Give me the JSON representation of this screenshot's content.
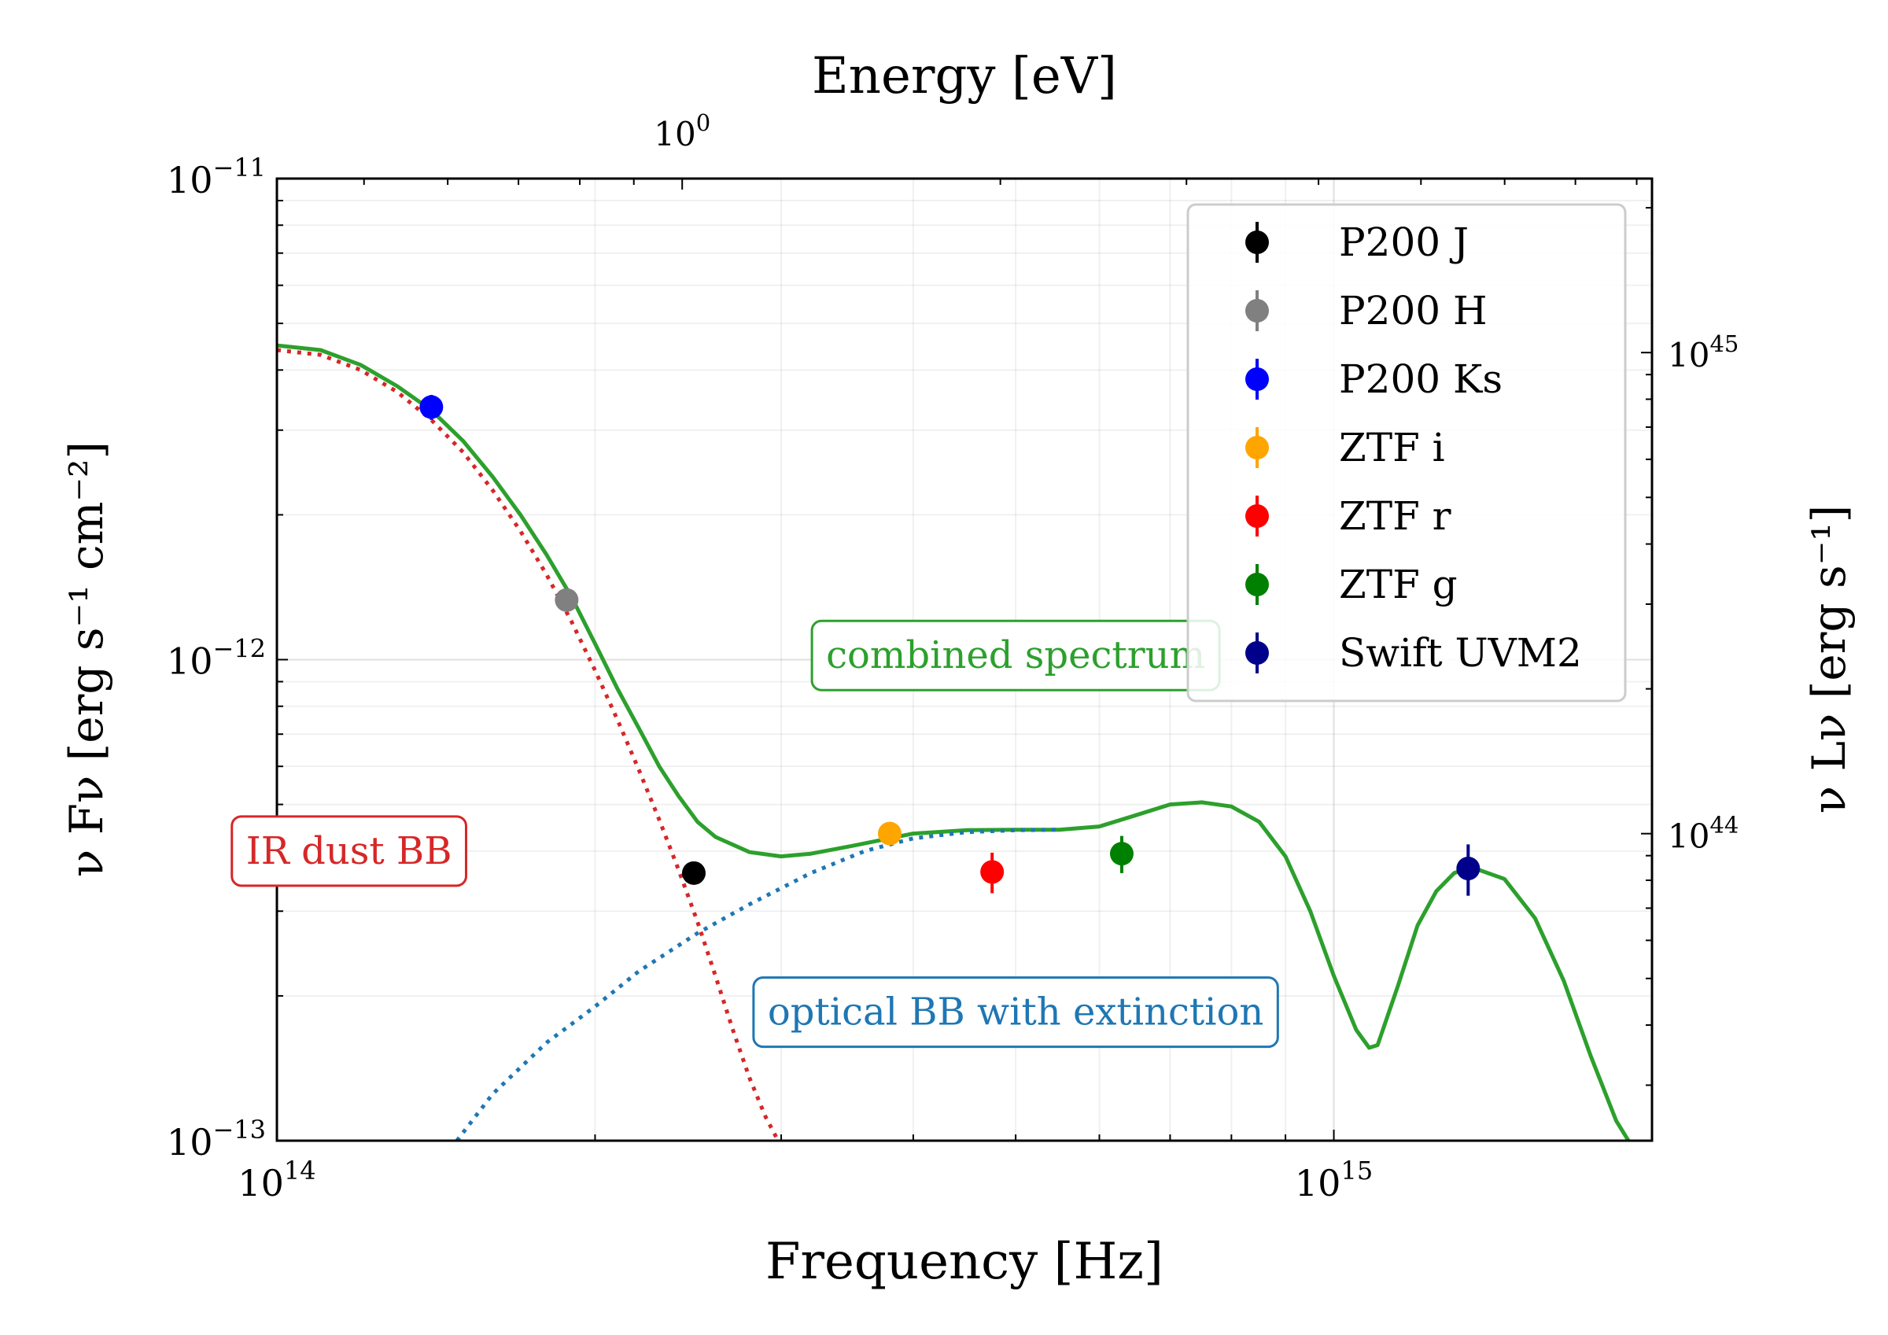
{
  "chart_data": {
    "type": "scatter",
    "title": "",
    "xlabel": "Frequency [Hz]",
    "ylabel": "ν Fν [erg s⁻¹ cm⁻²]",
    "top_xlabel": "Energy [eV]",
    "right_ylabel": "ν Lν [erg s⁻¹]",
    "xscale": "log",
    "yscale": "log",
    "xlim": [
      100000000000000.0,
      2000000000000000.0
    ],
    "ylim": [
      1e-13,
      1e-11
    ],
    "grid": true,
    "legend_position": "top-right",
    "x_ticks": [
      {
        "value": 100000000000000.0,
        "label_base": "10",
        "label_exp": "14"
      },
      {
        "value": 1000000000000000.0,
        "label_base": "10",
        "label_exp": "15"
      }
    ],
    "y_ticks": [
      {
        "value": 1e-13,
        "label_base": "10",
        "label_exp": "−13"
      },
      {
        "value": 1e-12,
        "label_base": "10",
        "label_exp": "−12"
      },
      {
        "value": 1e-11,
        "label_base": "10",
        "label_exp": "−11"
      }
    ],
    "top_ticks": [
      {
        "value_ev": 1,
        "label_base": "10",
        "label_exp": "0"
      }
    ],
    "right_ticks": [
      {
        "value": 1e+44,
        "label_base": "10",
        "label_exp": "44"
      },
      {
        "value": 1e+45,
        "label_base": "10",
        "label_exp": "45"
      }
    ],
    "right_ylim": [
      2.3e+43,
      2.3e+45
    ],
    "series": [
      {
        "name": "P200 J",
        "color": "#000000",
        "points": [
          {
            "x": 248000000000000.0,
            "y": 3.6e-13,
            "yerr": 1.5e-14
          }
        ]
      },
      {
        "name": "P200 H",
        "color": "#808080",
        "points": [
          {
            "x": 188000000000000.0,
            "y": 1.33e-12,
            "yerr": 5e-14
          }
        ]
      },
      {
        "name": "P200 Ks",
        "color": "#0000ff",
        "points": [
          {
            "x": 140000000000000.0,
            "y": 3.35e-12,
            "yerr": 2e-13
          }
        ]
      },
      {
        "name": "ZTF i",
        "color": "#ffa500",
        "points": [
          {
            "x": 380000000000000.0,
            "y": 4.35e-13,
            "yerr": 1e-14
          }
        ]
      },
      {
        "name": "ZTF r",
        "color": "#ff0000",
        "points": [
          {
            "x": 475000000000000.0,
            "y": 3.62e-13,
            "yerr": 3.5e-14
          }
        ]
      },
      {
        "name": "ZTF g",
        "color": "#008000",
        "points": [
          {
            "x": 630000000000000.0,
            "y": 3.95e-13,
            "yerr": 3.5e-14
          }
        ]
      },
      {
        "name": "Swift UVM2",
        "color": "#00008b",
        "points": [
          {
            "x": 1340000000000000.0,
            "y": 3.68e-13,
            "yerr": 4.5e-14
          }
        ]
      }
    ],
    "curves": [
      {
        "name": "combined spectrum",
        "color": "#2ca02c",
        "style": "solid",
        "points": [
          [
            100000000000000.0,
            4.5e-12
          ],
          [
            110000000000000.0,
            4.4e-12
          ],
          [
            120000000000000.0,
            4.1e-12
          ],
          [
            130000000000000.0,
            3.7e-12
          ],
          [
            140000000000000.0,
            3.3e-12
          ],
          [
            150000000000000.0,
            2.85e-12
          ],
          [
            160000000000000.0,
            2.4e-12
          ],
          [
            170000000000000.0,
            2e-12
          ],
          [
            180000000000000.0,
            1.65e-12
          ],
          [
            190000000000000.0,
            1.35e-12
          ],
          [
            200000000000000.0,
            1.08e-12
          ],
          [
            210000000000000.0,
            8.7e-13
          ],
          [
            220000000000000.0,
            7.2e-13
          ],
          [
            230000000000000.0,
            6e-13
          ],
          [
            240000000000000.0,
            5.2e-13
          ],
          [
            250000000000000.0,
            4.6e-13
          ],
          [
            260000000000000.0,
            4.28e-13
          ],
          [
            280000000000000.0,
            3.98e-13
          ],
          [
            300000000000000.0,
            3.9e-13
          ],
          [
            320000000000000.0,
            3.95e-13
          ],
          [
            350000000000000.0,
            4.1e-13
          ],
          [
            400000000000000.0,
            4.35e-13
          ],
          [
            450000000000000.0,
            4.42e-13
          ],
          [
            500000000000000.0,
            4.43e-13
          ],
          [
            550000000000000.0,
            4.43e-13
          ],
          [
            600000000000000.0,
            4.5e-13
          ],
          [
            650000000000000.0,
            4.75e-13
          ],
          [
            700000000000000.0,
            5e-13
          ],
          [
            750000000000000.0,
            5.05e-13
          ],
          [
            800000000000000.0,
            4.95e-13
          ],
          [
            850000000000000.0,
            4.6e-13
          ],
          [
            900000000000000.0,
            3.9e-13
          ],
          [
            950000000000000.0,
            3e-13
          ],
          [
            1000000000000000.0,
            2.2e-13
          ],
          [
            1050000000000000.0,
            1.7e-13
          ],
          [
            1080000000000000.0,
            1.56e-13
          ],
          [
            1100000000000000.0,
            1.58e-13
          ],
          [
            1150000000000000.0,
            2.1e-13
          ],
          [
            1200000000000000.0,
            2.8e-13
          ],
          [
            1250000000000000.0,
            3.3e-13
          ],
          [
            1300000000000000.0,
            3.6e-13
          ],
          [
            1350000000000000.0,
            3.7e-13
          ],
          [
            1450000000000000.0,
            3.5e-13
          ],
          [
            1550000000000000.0,
            2.9e-13
          ],
          [
            1650000000000000.0,
            2.15e-13
          ],
          [
            1750000000000000.0,
            1.5e-13
          ],
          [
            1850000000000000.0,
            1.1e-13
          ],
          [
            1900000000000000.0,
            1e-13
          ]
        ]
      },
      {
        "name": "IR dust BB",
        "color": "#d62728",
        "style": "dotted",
        "points": [
          [
            100000000000000.0,
            4.4e-12
          ],
          [
            110000000000000.0,
            4.3e-12
          ],
          [
            120000000000000.0,
            4e-12
          ],
          [
            130000000000000.0,
            3.6e-12
          ],
          [
            140000000000000.0,
            3.15e-12
          ],
          [
            150000000000000.0,
            2.7e-12
          ],
          [
            160000000000000.0,
            2.25e-12
          ],
          [
            170000000000000.0,
            1.85e-12
          ],
          [
            180000000000000.0,
            1.5e-12
          ],
          [
            190000000000000.0,
            1.2e-12
          ],
          [
            200000000000000.0,
            9.5e-13
          ],
          [
            210000000000000.0,
            7.5e-13
          ],
          [
            220000000000000.0,
            5.9e-13
          ],
          [
            230000000000000.0,
            4.65e-13
          ],
          [
            240000000000000.0,
            3.65e-13
          ],
          [
            250000000000000.0,
            2.85e-13
          ],
          [
            260000000000000.0,
            2.2e-13
          ],
          [
            270000000000000.0,
            1.7e-13
          ],
          [
            280000000000000.0,
            1.35e-13
          ],
          [
            290000000000000.0,
            1.12e-13
          ],
          [
            298000000000000.0,
            1e-13
          ]
        ]
      },
      {
        "name": "optical BB with extinction",
        "color": "#1f77b4",
        "style": "dotted",
        "points": [
          [
            148000000000000.0,
            1e-13
          ],
          [
            160000000000000.0,
            1.25e-13
          ],
          [
            180000000000000.0,
            1.6e-13
          ],
          [
            200000000000000.0,
            1.9e-13
          ],
          [
            220000000000000.0,
            2.25e-13
          ],
          [
            250000000000000.0,
            2.7e-13
          ],
          [
            280000000000000.0,
            3.1e-13
          ],
          [
            320000000000000.0,
            3.6e-13
          ],
          [
            360000000000000.0,
            4e-13
          ],
          [
            400000000000000.0,
            4.25e-13
          ],
          [
            450000000000000.0,
            4.38e-13
          ],
          [
            500000000000000.0,
            4.42e-13
          ],
          [
            550000000000000.0,
            4.43e-13
          ]
        ]
      }
    ],
    "annotations": [
      {
        "text": "combined spectrum",
        "color": "#2ca02c",
        "x": 500000000000000.0,
        "y": 1.02e-12
      },
      {
        "text": "IR dust BB",
        "color": "#d62728",
        "x": 117000000000000.0,
        "y": 4e-13
      },
      {
        "text": "optical BB with extinction",
        "color": "#1f77b4",
        "x": 500000000000000.0,
        "y": 1.85e-13
      }
    ]
  }
}
